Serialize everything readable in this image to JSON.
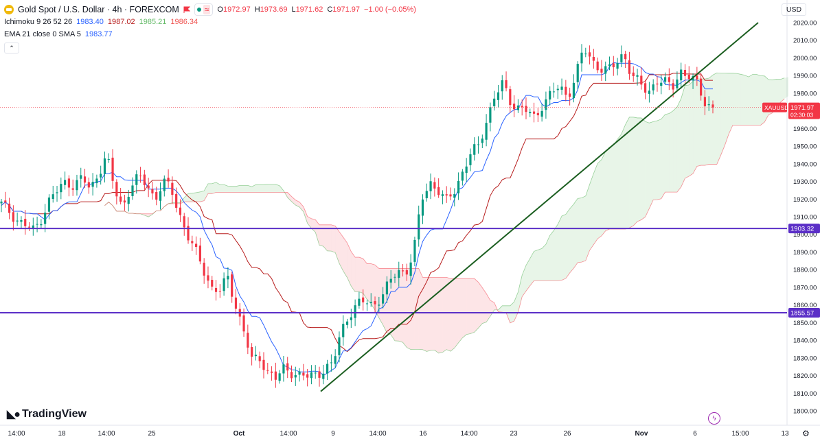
{
  "header": {
    "title": "Gold Spot / U.S. Dollar · 4h · FOREXCOM",
    "ohlc": {
      "o_label": "O",
      "o": "1972.97",
      "h_label": "H",
      "h": "1973.69",
      "l_label": "L",
      "l": "1971.62",
      "c_label": "C",
      "c": "1971.97",
      "change": "−1.00 (−0.05%)"
    },
    "ichimoku": {
      "label": "Ichimoku 9 26 52 26",
      "v1": "1983.40",
      "v2": "1987.02",
      "v3": "1985.21",
      "v4": "1986.34"
    },
    "ema": {
      "label": "EMA 21 close 0 SMA 5",
      "v1": "1983.77"
    },
    "collapse_symbol": "⌃"
  },
  "currency": "USD",
  "brand": "TradingView",
  "colors": {
    "up": "#089981",
    "down": "#f23645",
    "tenkan": "#2962ff",
    "kijun": "#b71c1c",
    "trendline": "#1b5e20",
    "level": "#5b2fc7",
    "price_tag": "#f23645"
  },
  "chart_data": {
    "type": "candlestick",
    "symbol": "XAUUSD",
    "timeframe": "4h",
    "ylim": [
      1795,
      2028
    ],
    "y_ticks": [
      1800,
      1810,
      1820,
      1830,
      1840,
      1850,
      1860,
      1870,
      1880,
      1890,
      1900,
      1910,
      1920,
      1930,
      1940,
      1950,
      1960,
      1970,
      1980,
      1990,
      2000,
      2010,
      2020
    ],
    "x_ticks": [
      "14:00",
      "18",
      "14:00",
      "25",
      "Oct",
      "14:00",
      "9",
      "14:00",
      "16",
      "14:00",
      "23",
      "26",
      "Nov",
      "6",
      "15:00",
      "13"
    ],
    "horizontal_levels": [
      {
        "value": 1903.32,
        "label": "1903.32"
      },
      {
        "value": 1855.57,
        "label": "1855.57"
      }
    ],
    "current_price": {
      "label": "XAUUSD",
      "value": "1971.97",
      "countdown": "02:30:03"
    },
    "trendline": {
      "from": [
        1811,
        "Oct 5"
      ],
      "to": [
        2020,
        "Nov 8"
      ]
    },
    "price_anchors": [
      1917,
      1913,
      1908,
      1905,
      1902,
      1910,
      1920,
      1925,
      1930,
      1928,
      1932,
      1925,
      1935,
      1945,
      1925,
      1915,
      1928,
      1932,
      1928,
      1920,
      1930,
      1925,
      1912,
      1900,
      1890,
      1880,
      1870,
      1868,
      1875,
      1860,
      1845,
      1828,
      1830,
      1822,
      1818,
      1824,
      1822,
      1820,
      1819,
      1821,
      1824,
      1826,
      1845,
      1855,
      1860,
      1862,
      1860,
      1865,
      1872,
      1880,
      1878,
      1890,
      1920,
      1930,
      1925,
      1918,
      1925,
      1935,
      1945,
      1950,
      1965,
      1978,
      1985,
      1975,
      1972,
      1970,
      1965,
      1975,
      1980,
      1983,
      1978,
      1990,
      2005,
      1998,
      1995,
      1993,
      1996,
      2003,
      1990,
      1985,
      1980,
      1988,
      1986,
      1983,
      1993,
      1990,
      1985,
      1975,
      1972
    ]
  }
}
